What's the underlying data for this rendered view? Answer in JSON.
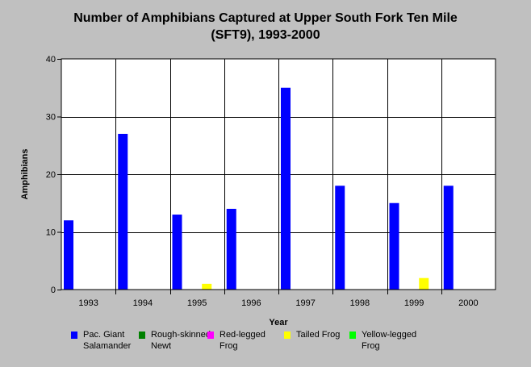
{
  "title": {
    "line1": "Number of Amphibians Captured at Upper South Fork Ten Mile",
    "line2": "(SFT9), 1993-2000"
  },
  "chart_data": {
    "type": "bar",
    "xlabel": "Year",
    "ylabel": "Amphibians",
    "ylim": [
      0,
      40
    ],
    "yticks": [
      0,
      10,
      20,
      30,
      40
    ],
    "grid": true,
    "legend_position": "bottom",
    "categories": [
      "1993",
      "1994",
      "1995",
      "1996",
      "1997",
      "1998",
      "1999",
      "2000"
    ],
    "series": [
      {
        "name": "Pac. Giant Salamander",
        "color": "#0000ff",
        "values": [
          12,
          27,
          13,
          14,
          35,
          18,
          15,
          18
        ]
      },
      {
        "name": "Rough-skinned Newt",
        "color": "#008000",
        "values": [
          0,
          0,
          0,
          0,
          0,
          0,
          0,
          0
        ]
      },
      {
        "name": "Red-legged Frog",
        "color": "#ff00ff",
        "values": [
          0,
          0,
          0,
          0,
          0,
          0,
          0,
          0
        ]
      },
      {
        "name": "Tailed Frog",
        "color": "#ffff00",
        "values": [
          0,
          0,
          1,
          0,
          0,
          0,
          2,
          0
        ]
      },
      {
        "name": "Yellow-legged Frog",
        "color": "#00ff00",
        "values": [
          0,
          0,
          0,
          0,
          0,
          0,
          0,
          0
        ]
      }
    ]
  },
  "legend": {
    "items": [
      {
        "label": "Pac. Giant Salamander",
        "color": "#0000ff"
      },
      {
        "label": "Rough-skinned Newt",
        "color": "#008000"
      },
      {
        "label": "Red-legged Frog",
        "color": "#ff00ff"
      },
      {
        "label": "Tailed Frog",
        "color": "#ffff00"
      },
      {
        "label": "Yellow-legged Frog",
        "color": "#00ff00"
      }
    ]
  }
}
